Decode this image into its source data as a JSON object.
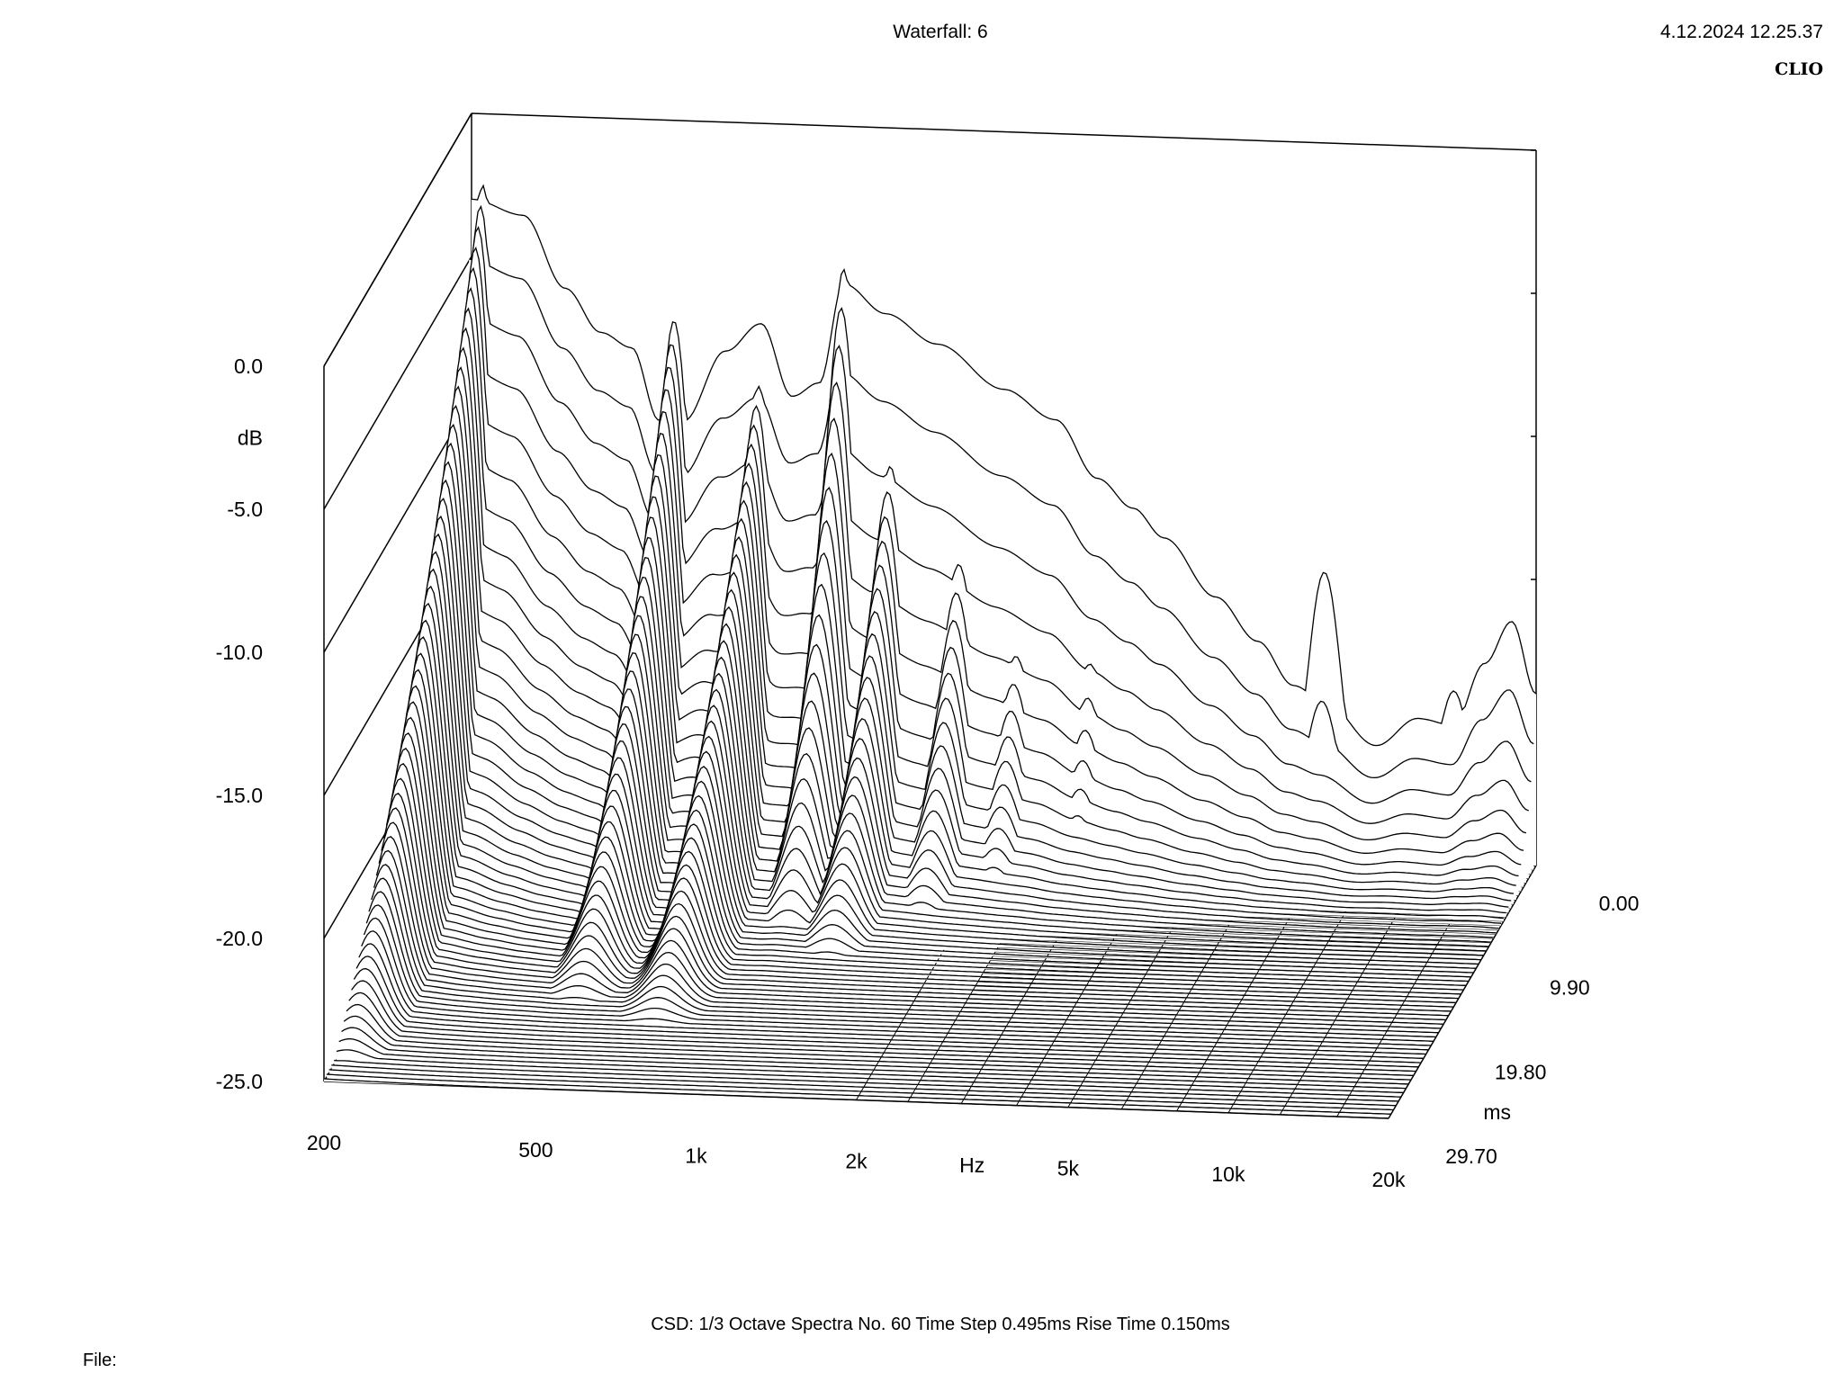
{
  "header": {
    "title": "Waterfall: 6",
    "timestamp": "4.12.2024 12.25.37",
    "brand": "CLIO"
  },
  "footer": {
    "settings": "CSD:   1/3 Octave   Spectra No. 60   Time Step 0.495ms   Rise Time 0.150ms",
    "file_label": "File:"
  },
  "chart_data": {
    "type": "waterfall",
    "title": "Waterfall: 6",
    "x_axis": {
      "label": "Hz",
      "scale": "log",
      "range": [
        200,
        20000
      ],
      "ticks": [
        {
          "value": 200,
          "label": "200"
        },
        {
          "value": 500,
          "label": "500"
        },
        {
          "value": 1000,
          "label": "1k"
        },
        {
          "value": 2000,
          "label": "2k"
        },
        {
          "value": 5000,
          "label": "5k"
        },
        {
          "value": 10000,
          "label": "10k"
        },
        {
          "value": 20000,
          "label": "20k"
        }
      ]
    },
    "y_axis": {
      "label": "dB",
      "range": [
        -25,
        0
      ],
      "ticks": [
        {
          "value": 0,
          "label": "0.0"
        },
        {
          "value": -5,
          "label": "-5.0"
        },
        {
          "value": -10,
          "label": "-10.0"
        },
        {
          "value": -15,
          "label": "-15.0"
        },
        {
          "value": -20,
          "label": "-20.0"
        },
        {
          "value": -25,
          "label": "-25.0"
        }
      ]
    },
    "z_axis": {
      "label": "ms",
      "range": [
        0,
        29.7
      ],
      "ticks": [
        {
          "value": 0,
          "label": "0.00"
        },
        {
          "value": 9.9,
          "label": "9.90"
        },
        {
          "value": 19.8,
          "label": "19.80"
        },
        {
          "value": 29.7,
          "label": "29.70"
        }
      ]
    },
    "spectra_count": 60,
    "time_step_ms": 0.495,
    "rise_time_ms": 0.15,
    "smoothing": "1/3 Octave",
    "first_spectrum": {
      "freq_hz": [
        200,
        250,
        300,
        350,
        400,
        450,
        500,
        600,
        700,
        800,
        900,
        1000,
        1200,
        1500,
        2000,
        2500,
        3000,
        3500,
        4000,
        5000,
        6000,
        7000,
        8000,
        10000,
        12000,
        14000,
        16000,
        18000,
        20000
      ],
      "level_db": [
        -3,
        -3.5,
        -6,
        -7.5,
        -8,
        -10.5,
        -10.5,
        -8,
        -7,
        -9.5,
        -9,
        -5.5,
        -6.5,
        -7.5,
        -9,
        -10,
        -12,
        -13,
        -14,
        -16,
        -17.5,
        -19,
        -19.5,
        -21,
        -20,
        -20.2,
        -18,
        -16.5,
        -19
      ]
    },
    "ridges": [
      {
        "freq_hz": 210,
        "peak_db": -2.5,
        "decay_ms": 28
      },
      {
        "freq_hz": 480,
        "peak_db": -7,
        "decay_ms": 20
      },
      {
        "freq_hz": 700,
        "peak_db": -8.5,
        "decay_ms": 22
      },
      {
        "freq_hz": 1000,
        "peak_db": -5,
        "decay_ms": 12
      },
      {
        "freq_hz": 1250,
        "peak_db": -10,
        "decay_ms": 14
      },
      {
        "freq_hz": 1700,
        "peak_db": -12,
        "decay_ms": 10
      },
      {
        "freq_hz": 2200,
        "peak_db": -14,
        "decay_ms": 8
      },
      {
        "freq_hz": 3000,
        "peak_db": -14.5,
        "decay_ms": 6
      },
      {
        "freq_hz": 4200,
        "peak_db": -16,
        "decay_ms": 4
      },
      {
        "freq_hz": 5500,
        "peak_db": -17.5,
        "decay_ms": 3
      },
      {
        "freq_hz": 8000,
        "peak_db": -15,
        "decay_ms": 1.5
      },
      {
        "freq_hz": 14000,
        "peak_db": -19,
        "decay_ms": 1
      }
    ]
  }
}
